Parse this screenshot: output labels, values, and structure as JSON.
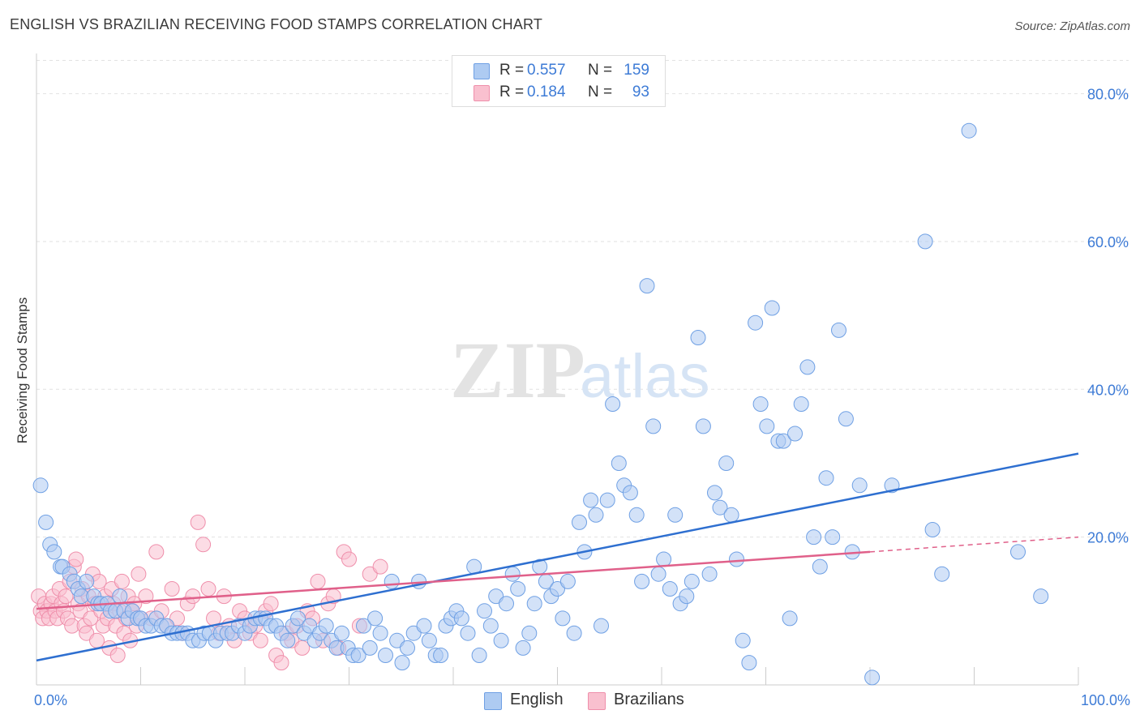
{
  "title": "ENGLISH VS BRAZILIAN RECEIVING FOOD STAMPS CORRELATION CHART",
  "source": "Source: ZipAtlas.com",
  "watermark": {
    "bold": "ZIP",
    "light": "atlas"
  },
  "legend": {
    "rows": [
      {
        "r_label": "R = ",
        "r_value": "0.557",
        "n_label": "N = ",
        "n_value": "159",
        "color": "#aecbf2",
        "border": "#6fa0e4"
      },
      {
        "r_label": "R = ",
        "r_value": "0.184",
        "n_label": "N = ",
        "n_value": "93",
        "color": "#f9c0cf",
        "border": "#ef8fab"
      }
    ]
  },
  "bottom_legend": [
    {
      "label": "English",
      "color": "#aecbf2",
      "border": "#6fa0e4"
    },
    {
      "label": "Brazilians",
      "color": "#f9c0cf",
      "border": "#ef8fab"
    }
  ],
  "chart_data": {
    "type": "scatter",
    "title": "ENGLISH VS BRAZILIAN RECEIVING FOOD STAMPS CORRELATION CHART",
    "xlabel": "",
    "ylabel": "Receiving Food Stamps",
    "xlim": [
      0,
      100
    ],
    "ylim": [
      0,
      85
    ],
    "x_tick_labels": [
      "0.0%",
      "100.0%"
    ],
    "y_ticks": [
      20,
      40,
      60,
      80
    ],
    "y_tick_labels": [
      "20.0%",
      "40.0%",
      "60.0%",
      "80.0%"
    ],
    "grid": true,
    "legend_position": "top-center",
    "series": [
      {
        "name": "English",
        "color": "#6fa0e4",
        "fill": "#aecbf2",
        "trend": {
          "x": [
            0,
            100
          ],
          "y": [
            3.3,
            31.3
          ],
          "color": "#2e6fd0"
        },
        "points": [
          [
            0.4,
            27
          ],
          [
            0.9,
            22
          ],
          [
            1.3,
            19
          ],
          [
            1.7,
            18
          ],
          [
            2.3,
            16
          ],
          [
            2.5,
            16
          ],
          [
            3.2,
            15
          ],
          [
            3.6,
            14
          ],
          [
            4.0,
            13
          ],
          [
            4.3,
            12
          ],
          [
            4.8,
            14
          ],
          [
            5.5,
            12
          ],
          [
            5.9,
            11
          ],
          [
            6.2,
            11
          ],
          [
            6.8,
            11
          ],
          [
            7.1,
            10
          ],
          [
            7.6,
            10
          ],
          [
            8.0,
            12
          ],
          [
            8.4,
            10
          ],
          [
            8.8,
            9
          ],
          [
            9.2,
            10
          ],
          [
            9.7,
            9
          ],
          [
            10.0,
            9
          ],
          [
            10.5,
            8
          ],
          [
            11.0,
            8
          ],
          [
            11.5,
            9
          ],
          [
            12.0,
            8
          ],
          [
            12.5,
            8
          ],
          [
            13.0,
            7
          ],
          [
            13.5,
            7
          ],
          [
            14.0,
            7
          ],
          [
            14.5,
            7
          ],
          [
            15.0,
            6
          ],
          [
            15.6,
            6
          ],
          [
            16.1,
            7
          ],
          [
            16.6,
            7
          ],
          [
            17.2,
            6
          ],
          [
            17.7,
            7
          ],
          [
            18.3,
            7
          ],
          [
            18.8,
            7
          ],
          [
            19.4,
            8
          ],
          [
            20.0,
            7
          ],
          [
            20.5,
            8
          ],
          [
            21.0,
            9
          ],
          [
            21.5,
            9
          ],
          [
            22.0,
            9
          ],
          [
            22.5,
            8
          ],
          [
            23.0,
            8
          ],
          [
            23.5,
            7
          ],
          [
            24.1,
            6
          ],
          [
            24.6,
            8
          ],
          [
            25.1,
            9
          ],
          [
            25.7,
            7
          ],
          [
            26.2,
            8
          ],
          [
            26.7,
            6
          ],
          [
            27.2,
            7
          ],
          [
            27.8,
            8
          ],
          [
            28.3,
            6
          ],
          [
            28.8,
            5
          ],
          [
            29.3,
            7
          ],
          [
            29.9,
            5
          ],
          [
            30.4,
            4
          ],
          [
            30.9,
            4
          ],
          [
            31.4,
            8
          ],
          [
            32.0,
            5
          ],
          [
            32.5,
            9
          ],
          [
            33.0,
            7
          ],
          [
            33.5,
            4
          ],
          [
            34.1,
            14
          ],
          [
            34.6,
            6
          ],
          [
            35.1,
            3
          ],
          [
            35.6,
            5
          ],
          [
            36.2,
            7
          ],
          [
            36.7,
            14
          ],
          [
            37.2,
            8
          ],
          [
            37.7,
            6
          ],
          [
            38.3,
            4
          ],
          [
            38.8,
            4
          ],
          [
            39.3,
            8
          ],
          [
            39.8,
            9
          ],
          [
            40.3,
            10
          ],
          [
            40.8,
            9
          ],
          [
            41.4,
            7
          ],
          [
            42.0,
            16
          ],
          [
            42.5,
            4
          ],
          [
            43.0,
            10
          ],
          [
            43.6,
            8
          ],
          [
            44.1,
            12
          ],
          [
            44.6,
            6
          ],
          [
            45.1,
            11
          ],
          [
            45.7,
            15
          ],
          [
            46.2,
            13
          ],
          [
            46.7,
            5
          ],
          [
            47.3,
            7
          ],
          [
            47.8,
            11
          ],
          [
            48.3,
            16
          ],
          [
            48.9,
            14
          ],
          [
            49.4,
            12
          ],
          [
            50.0,
            13
          ],
          [
            50.5,
            9
          ],
          [
            51.0,
            14
          ],
          [
            51.6,
            7
          ],
          [
            52.1,
            22
          ],
          [
            52.6,
            18
          ],
          [
            53.2,
            25
          ],
          [
            53.7,
            23
          ],
          [
            54.2,
            8
          ],
          [
            54.8,
            25
          ],
          [
            55.3,
            38
          ],
          [
            55.9,
            30
          ],
          [
            56.4,
            27
          ],
          [
            57.0,
            26
          ],
          [
            57.6,
            23
          ],
          [
            58.1,
            14
          ],
          [
            58.6,
            54
          ],
          [
            59.2,
            35
          ],
          [
            59.7,
            15
          ],
          [
            60.2,
            17
          ],
          [
            60.8,
            13
          ],
          [
            61.3,
            23
          ],
          [
            61.8,
            11
          ],
          [
            62.4,
            12
          ],
          [
            62.9,
            14
          ],
          [
            63.5,
            47
          ],
          [
            64.0,
            35
          ],
          [
            64.6,
            15
          ],
          [
            65.1,
            26
          ],
          [
            65.6,
            24
          ],
          [
            66.2,
            30
          ],
          [
            66.7,
            23
          ],
          [
            67.2,
            17
          ],
          [
            67.8,
            6
          ],
          [
            68.4,
            3
          ],
          [
            69.0,
            49
          ],
          [
            69.5,
            38
          ],
          [
            70.1,
            35
          ],
          [
            70.6,
            51
          ],
          [
            71.2,
            33
          ],
          [
            71.7,
            33
          ],
          [
            72.3,
            9
          ],
          [
            72.8,
            34
          ],
          [
            73.4,
            38
          ],
          [
            74.0,
            43
          ],
          [
            74.6,
            20
          ],
          [
            75.2,
            16
          ],
          [
            75.8,
            28
          ],
          [
            76.4,
            20
          ],
          [
            77.0,
            48
          ],
          [
            77.7,
            36
          ],
          [
            78.3,
            18
          ],
          [
            79.0,
            27
          ],
          [
            80.2,
            1
          ],
          [
            82.1,
            27
          ],
          [
            85.3,
            60
          ],
          [
            86.0,
            21
          ],
          [
            86.9,
            15
          ],
          [
            89.5,
            75
          ],
          [
            94.2,
            18
          ],
          [
            96.4,
            12
          ]
        ]
      },
      {
        "name": "Brazilians",
        "color": "#ef8fab",
        "fill": "#f9c0cf",
        "trend": {
          "x": [
            0,
            80
          ],
          "y": [
            10.3,
            18.0
          ],
          "color": "#e0608a",
          "dashed_extension_to": [
            100,
            20.0
          ]
        },
        "points": [
          [
            0.2,
            12
          ],
          [
            0.4,
            10
          ],
          [
            0.6,
            9
          ],
          [
            0.8,
            11
          ],
          [
            1.0,
            10
          ],
          [
            1.2,
            9
          ],
          [
            1.4,
            11
          ],
          [
            1.6,
            12
          ],
          [
            1.8,
            10
          ],
          [
            2.0,
            9
          ],
          [
            2.2,
            13
          ],
          [
            2.4,
            11
          ],
          [
            2.6,
            10
          ],
          [
            2.8,
            12
          ],
          [
            3.0,
            9
          ],
          [
            3.2,
            14
          ],
          [
            3.4,
            8
          ],
          [
            3.6,
            16
          ],
          [
            3.8,
            17
          ],
          [
            4.0,
            11
          ],
          [
            4.2,
            10
          ],
          [
            4.4,
            13
          ],
          [
            4.6,
            8
          ],
          [
            4.8,
            7
          ],
          [
            5.0,
            12
          ],
          [
            5.2,
            9
          ],
          [
            5.4,
            15
          ],
          [
            5.6,
            11
          ],
          [
            5.8,
            6
          ],
          [
            6.0,
            14
          ],
          [
            6.2,
            10
          ],
          [
            6.4,
            8
          ],
          [
            6.6,
            12
          ],
          [
            6.8,
            9
          ],
          [
            7.0,
            5
          ],
          [
            7.2,
            13
          ],
          [
            7.4,
            11
          ],
          [
            7.6,
            8
          ],
          [
            7.8,
            4
          ],
          [
            8.0,
            10
          ],
          [
            8.2,
            14
          ],
          [
            8.4,
            7
          ],
          [
            8.6,
            9
          ],
          [
            8.8,
            12
          ],
          [
            9.0,
            6
          ],
          [
            9.2,
            10
          ],
          [
            9.4,
            11
          ],
          [
            9.6,
            8
          ],
          [
            9.8,
            15
          ],
          [
            10.0,
            9
          ],
          [
            10.5,
            12
          ],
          [
            11.0,
            9
          ],
          [
            11.5,
            18
          ],
          [
            12.0,
            10
          ],
          [
            12.5,
            8
          ],
          [
            13.0,
            13
          ],
          [
            13.5,
            9
          ],
          [
            14.0,
            7
          ],
          [
            14.5,
            11
          ],
          [
            15.0,
            12
          ],
          [
            15.5,
            22
          ],
          [
            16.0,
            19
          ],
          [
            16.5,
            13
          ],
          [
            17.0,
            9
          ],
          [
            17.5,
            7
          ],
          [
            18.0,
            12
          ],
          [
            18.5,
            8
          ],
          [
            19.0,
            6
          ],
          [
            19.5,
            10
          ],
          [
            20.0,
            9
          ],
          [
            20.5,
            7
          ],
          [
            21.0,
            8
          ],
          [
            21.5,
            6
          ],
          [
            22.0,
            10
          ],
          [
            22.5,
            11
          ],
          [
            23.0,
            4
          ],
          [
            23.5,
            3
          ],
          [
            24.0,
            7
          ],
          [
            24.5,
            6
          ],
          [
            25.0,
            8
          ],
          [
            25.5,
            5
          ],
          [
            26.0,
            10
          ],
          [
            26.5,
            9
          ],
          [
            27.0,
            14
          ],
          [
            27.5,
            6
          ],
          [
            28.0,
            11
          ],
          [
            28.5,
            12
          ],
          [
            29.0,
            5
          ],
          [
            29.5,
            18
          ],
          [
            30.0,
            17
          ],
          [
            31.0,
            8
          ],
          [
            32.0,
            15
          ],
          [
            33.0,
            16
          ]
        ]
      }
    ]
  }
}
